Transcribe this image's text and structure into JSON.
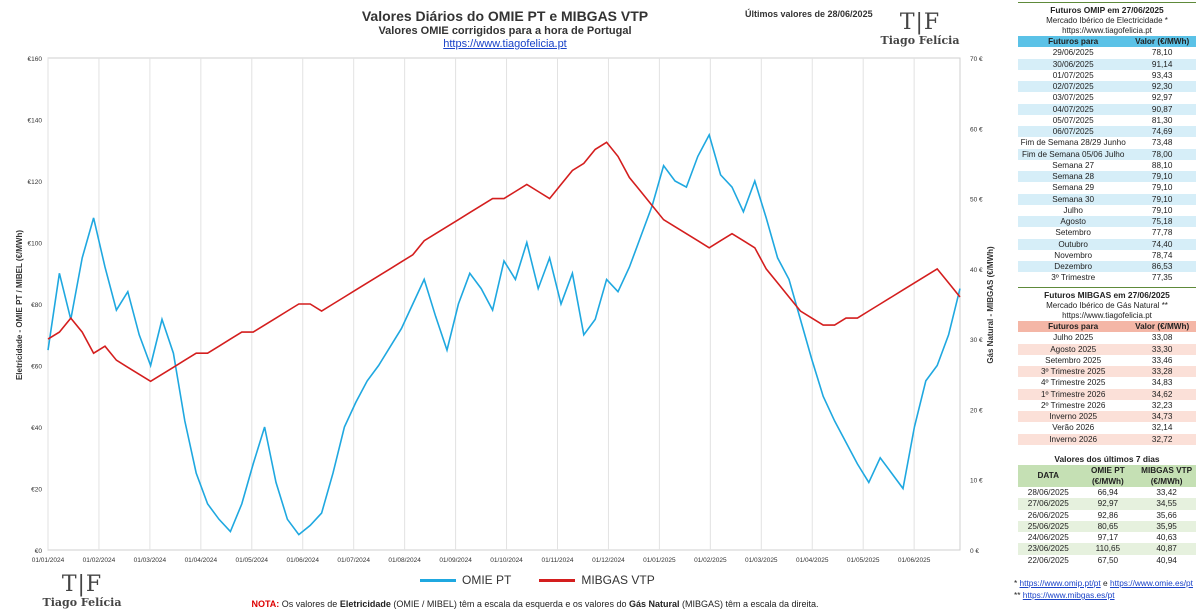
{
  "header": {
    "title": "Valores Diários do OMIE PT e MIBGAS VTP",
    "subtitle": "Valores OMIE corrigidos para a hora de Portugal",
    "link": "https://www.tiagofelicia.pt",
    "last_values": "Últimos valores de 28/06/2025"
  },
  "logo": {
    "mark": "T|F",
    "name": "Tiago Felícia"
  },
  "chart_data": {
    "type": "line",
    "ylabel_left": "Eletricidade - OMIE PT / MIBEL (€/MWh)",
    "ylabel_right": "Gás Natural - MIBGAS (€/MWh)",
    "y_left": {
      "min": 0,
      "max": 160,
      "ticks": [
        "€0",
        "€20",
        "€40",
        "€60",
        "€80",
        "€100",
        "€120",
        "€140",
        "€160"
      ]
    },
    "y_right": {
      "min": 0,
      "max": 70,
      "ticks": [
        "0 €",
        "10 €",
        "20 €",
        "30 €",
        "40 €",
        "50 €",
        "60 €",
        "70 €"
      ]
    },
    "x_ticks": [
      "01/01/2024",
      "01/02/2024",
      "01/03/2024",
      "01/04/2024",
      "01/05/2024",
      "01/06/2024",
      "01/07/2024",
      "01/08/2024",
      "01/09/2024",
      "01/10/2024",
      "01/11/2024",
      "01/12/2024",
      "01/01/2025",
      "01/02/2025",
      "01/03/2025",
      "01/04/2025",
      "01/05/2025",
      "01/06/2025"
    ],
    "grid": "vertical",
    "legend_position": "bottom",
    "series": [
      {
        "name": "OMIE PT",
        "axis": "left",
        "color": "#1fa8e0",
        "points": [
          [
            0,
            65
          ],
          [
            0.5,
            90
          ],
          [
            1,
            75
          ],
          [
            1.5,
            95
          ],
          [
            2,
            108
          ],
          [
            2.5,
            92
          ],
          [
            3,
            78
          ],
          [
            3.5,
            84
          ],
          [
            4,
            70
          ],
          [
            4.5,
            60
          ],
          [
            5,
            75
          ],
          [
            5.5,
            64
          ],
          [
            6,
            42
          ],
          [
            6.5,
            25
          ],
          [
            7,
            15
          ],
          [
            7.5,
            10
          ],
          [
            8,
            6
          ],
          [
            8.5,
            15
          ],
          [
            9,
            28
          ],
          [
            9.5,
            40
          ],
          [
            10,
            22
          ],
          [
            10.5,
            10
          ],
          [
            11,
            5
          ],
          [
            11.5,
            8
          ],
          [
            12,
            12
          ],
          [
            12.5,
            25
          ],
          [
            13,
            40
          ],
          [
            13.5,
            48
          ],
          [
            14,
            55
          ],
          [
            14.5,
            60
          ],
          [
            15,
            66
          ],
          [
            15.5,
            72
          ],
          [
            16,
            80
          ],
          [
            16.5,
            88
          ],
          [
            17,
            76
          ],
          [
            17.5,
            65
          ],
          [
            18,
            80
          ],
          [
            18.5,
            90
          ],
          [
            19,
            85
          ],
          [
            19.5,
            78
          ],
          [
            20,
            94
          ],
          [
            20.5,
            88
          ],
          [
            21,
            100
          ],
          [
            21.5,
            85
          ],
          [
            22,
            95
          ],
          [
            22.5,
            80
          ],
          [
            23,
            90
          ],
          [
            23.5,
            70
          ],
          [
            24,
            75
          ],
          [
            24.5,
            88
          ],
          [
            25,
            84
          ],
          [
            25.5,
            92
          ],
          [
            26,
            102
          ],
          [
            26.5,
            112
          ],
          [
            27,
            125
          ],
          [
            27.5,
            120
          ],
          [
            28,
            118
          ],
          [
            28.5,
            128
          ],
          [
            29,
            135
          ],
          [
            29.5,
            122
          ],
          [
            30,
            118
          ],
          [
            30.5,
            110
          ],
          [
            31,
            120
          ],
          [
            31.5,
            108
          ],
          [
            32,
            95
          ],
          [
            32.5,
            88
          ],
          [
            33,
            75
          ],
          [
            33.5,
            62
          ],
          [
            34,
            50
          ],
          [
            34.5,
            42
          ],
          [
            35,
            35
          ],
          [
            35.5,
            28
          ],
          [
            36,
            22
          ],
          [
            36.5,
            30
          ],
          [
            37,
            25
          ],
          [
            37.5,
            20
          ],
          [
            38,
            40
          ],
          [
            38.5,
            55
          ],
          [
            39,
            60
          ],
          [
            39.5,
            70
          ],
          [
            40,
            85
          ]
        ]
      },
      {
        "name": "MIBGAS VTP",
        "axis": "right",
        "color": "#d41e1e",
        "points": [
          [
            0,
            30
          ],
          [
            0.5,
            31
          ],
          [
            1,
            33
          ],
          [
            1.5,
            31
          ],
          [
            2,
            28
          ],
          [
            2.5,
            29
          ],
          [
            3,
            27
          ],
          [
            3.5,
            26
          ],
          [
            4,
            25
          ],
          [
            4.5,
            24
          ],
          [
            5,
            25
          ],
          [
            5.5,
            26
          ],
          [
            6,
            27
          ],
          [
            6.5,
            28
          ],
          [
            7,
            28
          ],
          [
            7.5,
            29
          ],
          [
            8,
            30
          ],
          [
            8.5,
            31
          ],
          [
            9,
            31
          ],
          [
            9.5,
            32
          ],
          [
            10,
            33
          ],
          [
            10.5,
            34
          ],
          [
            11,
            35
          ],
          [
            11.5,
            35
          ],
          [
            12,
            34
          ],
          [
            12.5,
            35
          ],
          [
            13,
            36
          ],
          [
            13.5,
            37
          ],
          [
            14,
            38
          ],
          [
            14.5,
            39
          ],
          [
            15,
            40
          ],
          [
            15.5,
            41
          ],
          [
            16,
            42
          ],
          [
            16.5,
            44
          ],
          [
            17,
            45
          ],
          [
            17.5,
            46
          ],
          [
            18,
            47
          ],
          [
            18.5,
            48
          ],
          [
            19,
            49
          ],
          [
            19.5,
            50
          ],
          [
            20,
            50
          ],
          [
            20.5,
            51
          ],
          [
            21,
            52
          ],
          [
            21.5,
            51
          ],
          [
            22,
            50
          ],
          [
            22.5,
            52
          ],
          [
            23,
            54
          ],
          [
            23.5,
            55
          ],
          [
            24,
            57
          ],
          [
            24.5,
            58
          ],
          [
            25,
            56
          ],
          [
            25.5,
            53
          ],
          [
            26,
            51
          ],
          [
            26.5,
            49
          ],
          [
            27,
            47
          ],
          [
            27.5,
            46
          ],
          [
            28,
            45
          ],
          [
            28.5,
            44
          ],
          [
            29,
            43
          ],
          [
            29.5,
            44
          ],
          [
            30,
            45
          ],
          [
            30.5,
            44
          ],
          [
            31,
            43
          ],
          [
            31.5,
            40
          ],
          [
            32,
            38
          ],
          [
            32.5,
            36
          ],
          [
            33,
            34
          ],
          [
            33.5,
            33
          ],
          [
            34,
            32
          ],
          [
            34.5,
            32
          ],
          [
            35,
            33
          ],
          [
            35.5,
            33
          ],
          [
            36,
            34
          ],
          [
            36.5,
            35
          ],
          [
            37,
            36
          ],
          [
            37.5,
            37
          ],
          [
            38,
            38
          ],
          [
            38.5,
            39
          ],
          [
            39,
            40
          ],
          [
            39.5,
            38
          ],
          [
            40,
            36
          ]
        ]
      }
    ]
  },
  "legend": {
    "omie": "OMIE PT",
    "mibgas": "MIBGAS VTP"
  },
  "note": {
    "prefix": "NOTA:",
    "t1": " Os valores de ",
    "b1": "Eletricidade",
    "t2": " (OMIE / MIBEL) têm a escala da esquerda e os valores do ",
    "b2": "Gás Natural",
    "t3": " (MIBGAS) têm a escala da direita."
  },
  "omip": {
    "title": "Futuros OMIP em 27/06/2025",
    "subtitle": "Mercado Ibérico de Electricidade *",
    "link": "https://www.tiagofelicia.pt",
    "col1": "Futuros para",
    "col2": "Valor (€/MWh)",
    "rows": [
      [
        "29/06/2025",
        "78,10"
      ],
      [
        "30/06/2025",
        "91,14"
      ],
      [
        "01/07/2025",
        "93,43"
      ],
      [
        "02/07/2025",
        "92,30"
      ],
      [
        "03/07/2025",
        "92,97"
      ],
      [
        "04/07/2025",
        "90,87"
      ],
      [
        "05/07/2025",
        "81,30"
      ],
      [
        "06/07/2025",
        "74,69"
      ],
      [
        "Fim de Semana 28/29 Junho",
        "73,48"
      ],
      [
        "Fim de Semana 05/06 Julho",
        "78,00"
      ],
      [
        "Semana 27",
        "88,10"
      ],
      [
        "Semana 28",
        "79,10"
      ],
      [
        "Semana 29",
        "79,10"
      ],
      [
        "Semana 30",
        "79,10"
      ],
      [
        "Julho",
        "79,10"
      ],
      [
        "Agosto",
        "75,18"
      ],
      [
        "Setembro",
        "77,78"
      ],
      [
        "Outubro",
        "74,40"
      ],
      [
        "Novembro",
        "78,74"
      ],
      [
        "Dezembro",
        "86,53"
      ],
      [
        "3º Trimestre",
        "77,35"
      ]
    ]
  },
  "mibgas": {
    "title": "Futuros MIBGAS em 27/06/2025",
    "subtitle": "Mercado Ibérico de Gás Natural **",
    "link": "https://www.tiagofelicia.pt",
    "col1": "Futuros para",
    "col2": "Valor (€/MWh)",
    "rows": [
      [
        "Julho 2025",
        "33,08"
      ],
      [
        "Agosto 2025",
        "33,30"
      ],
      [
        "Setembro 2025",
        "33,46"
      ],
      [
        "3º Trimestre 2025",
        "33,28"
      ],
      [
        "4º Trimestre 2025",
        "34,83"
      ],
      [
        "1º Trimestre 2026",
        "34,62"
      ],
      [
        "2º Trimestre 2026",
        "32,23"
      ],
      [
        "Inverno 2025",
        "34,73"
      ],
      [
        "Verão 2026",
        "32,14"
      ],
      [
        "Inverno 2026",
        "32,72"
      ]
    ]
  },
  "last7": {
    "title": "Valores dos últimos 7 dias",
    "col1": "DATA",
    "col2a": "OMIE PT",
    "col2b": "(€/MWh)",
    "col3a": "MIBGAS VTP",
    "col3b": "(€/MWh)",
    "rows": [
      [
        "28/06/2025",
        "66,94",
        "33,42"
      ],
      [
        "27/06/2025",
        "92,97",
        "34,55"
      ],
      [
        "26/06/2025",
        "92,86",
        "35,66"
      ],
      [
        "25/06/2025",
        "80,65",
        "35,95"
      ],
      [
        "24/06/2025",
        "97,17",
        "40,63"
      ],
      [
        "23/06/2025",
        "110,65",
        "40,87"
      ],
      [
        "22/06/2025",
        "67,50",
        "40,94"
      ]
    ]
  },
  "footer": {
    "line1_star": "*",
    "line1_link1": "https://www.omip.pt/pt",
    "line1_and": "e",
    "line1_link2": "https://www.omie.es/pt",
    "line2_star": "**",
    "line2_link": "https://www.mibgas.es/pt"
  }
}
